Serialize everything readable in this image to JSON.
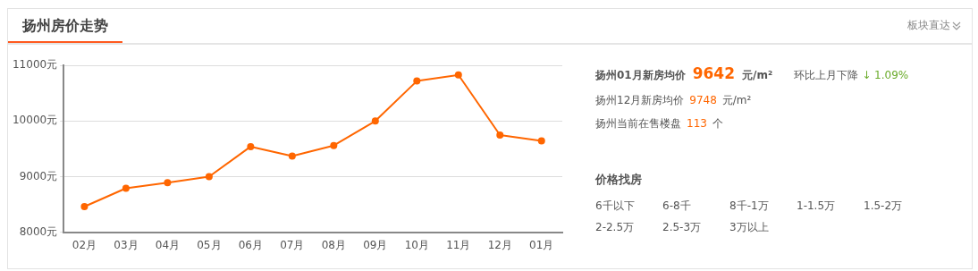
{
  "chart_data": [
    {
      "type": "line",
      "title": "扬州房价走势",
      "annotations": [
        "板块直达"
      ],
      "categories": [
        "02月",
        "03月",
        "04月",
        "05月",
        "06月",
        "07月",
        "08月",
        "09月",
        "10月",
        "11月",
        "12月",
        "01月"
      ],
      "series": [
        {
          "color": "#ff6600",
          "values": [
            8460,
            8790,
            8890,
            9000,
            9540,
            9370,
            9560,
            10000,
            10720,
            10830,
            9748,
            9642
          ]
        }
      ],
      "ylim": [
        8000,
        11000
      ],
      "yticks": [
        {
          "value": 8000,
          "label": "8000元"
        },
        {
          "value": 9000,
          "label": "9000元"
        },
        {
          "value": 10000,
          "label": "10000元"
        },
        {
          "value": 11000,
          "label": "11000元"
        }
      ],
      "grid": "y",
      "legend": false,
      "marker": "circle",
      "line_style": "solid"
    },
    {
      "type": "other",
      "title": "价格找房",
      "annotations": [
        "扬州01月新房均价",
        "9642",
        "元/m²",
        "环比上月下降",
        "↓ 1.09%",
        "扬州12月新房均价",
        "9748",
        "元/m²",
        "扬州当前在售楼盘",
        "113",
        "个",
        "6千以下",
        "6-8千",
        "8千-1万",
        "1-1.5万",
        "1.5-2万",
        "2-2.5万",
        "2.5-3万",
        "3万以上"
      ]
    }
  ]
}
